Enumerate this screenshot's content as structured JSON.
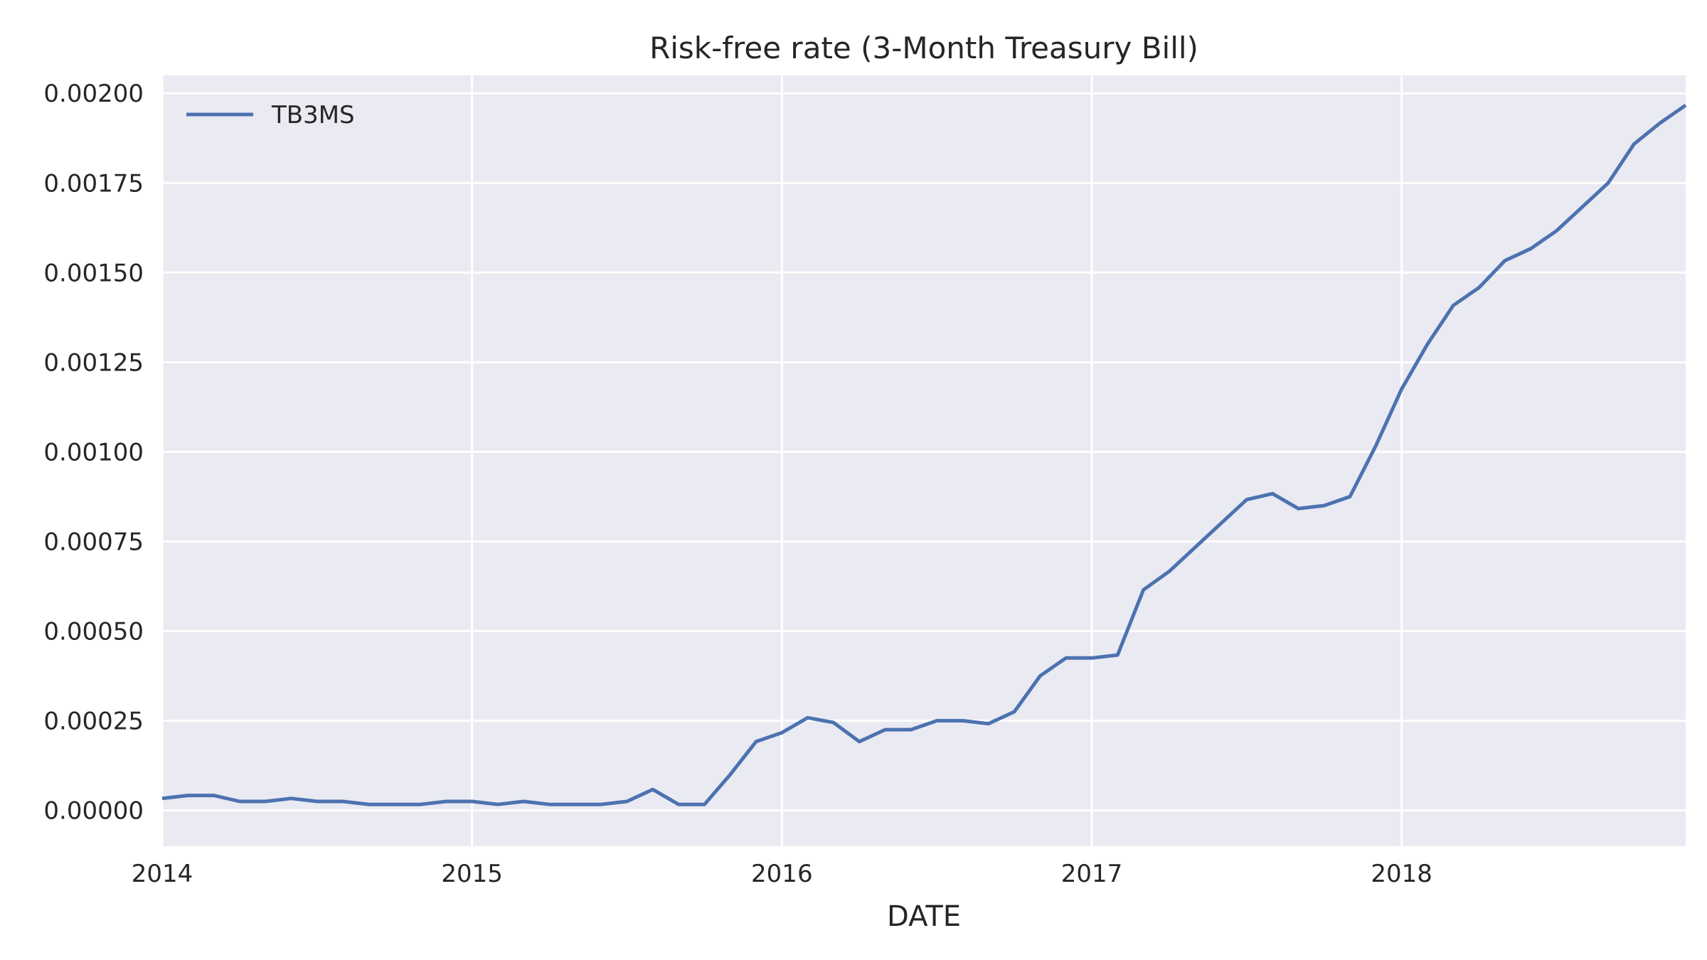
{
  "chart_data": {
    "type": "line",
    "title": "Risk-free rate (3-Month Treasury Bill)",
    "xlabel": "DATE",
    "ylabel": "",
    "x_start": "2014-01",
    "x_frequency": "monthly",
    "xlim": [
      "2014-01",
      "2018-12"
    ],
    "ylim": [
      -0.0001,
      0.00205
    ],
    "x_ticks": [
      {
        "date": "2014-01",
        "label": "2014"
      },
      {
        "date": "2015-01",
        "label": "2015"
      },
      {
        "date": "2016-01",
        "label": "2016"
      },
      {
        "date": "2017-01",
        "label": "2017"
      },
      {
        "date": "2018-01",
        "label": "2018"
      }
    ],
    "y_ticks": [
      {
        "value": 0.0,
        "label": "0.00000"
      },
      {
        "value": 0.00025,
        "label": "0.00025"
      },
      {
        "value": 0.0005,
        "label": "0.00050"
      },
      {
        "value": 0.00075,
        "label": "0.00075"
      },
      {
        "value": 0.001,
        "label": "0.00100"
      },
      {
        "value": 0.00125,
        "label": "0.00125"
      },
      {
        "value": 0.0015,
        "label": "0.00150"
      },
      {
        "value": 0.00175,
        "label": "0.00175"
      },
      {
        "value": 0.002,
        "label": "0.00200"
      }
    ],
    "grid": true,
    "legend_position": "upper-left",
    "colors": {
      "background": "#eaeaf2",
      "grid": "#ffffff",
      "line": "#4c72b0"
    },
    "series": [
      {
        "name": "TB3MS",
        "x": [
          "2014-01",
          "2014-02",
          "2014-03",
          "2014-04",
          "2014-05",
          "2014-06",
          "2014-07",
          "2014-08",
          "2014-09",
          "2014-10",
          "2014-11",
          "2014-12",
          "2015-01",
          "2015-02",
          "2015-03",
          "2015-04",
          "2015-05",
          "2015-06",
          "2015-07",
          "2015-08",
          "2015-09",
          "2015-10",
          "2015-11",
          "2015-12",
          "2016-01",
          "2016-02",
          "2016-03",
          "2016-04",
          "2016-05",
          "2016-06",
          "2016-07",
          "2016-08",
          "2016-09",
          "2016-10",
          "2016-11",
          "2016-12",
          "2017-01",
          "2017-02",
          "2017-03",
          "2017-04",
          "2017-05",
          "2017-06",
          "2017-07",
          "2017-08",
          "2017-09",
          "2017-10",
          "2017-11",
          "2017-12",
          "2018-01",
          "2018-02",
          "2018-03",
          "2018-04",
          "2018-05",
          "2018-06",
          "2018-07",
          "2018-08",
          "2018-09",
          "2018-10",
          "2018-11",
          "2018-12"
        ],
        "values": [
          3.33e-05,
          4.17e-05,
          4.17e-05,
          2.5e-05,
          2.5e-05,
          3.33e-05,
          2.5e-05,
          2.5e-05,
          1.67e-05,
          1.67e-05,
          1.67e-05,
          2.5e-05,
          2.5e-05,
          1.67e-05,
          2.5e-05,
          1.67e-05,
          1.67e-05,
          1.67e-05,
          2.5e-05,
          5.83e-05,
          1.67e-05,
          1.67e-05,
          0.0001,
          0.00019167,
          0.00021667,
          0.00025833,
          0.000245,
          0.00019167,
          0.000225,
          0.000225,
          0.00025,
          0.00025,
          0.00024167,
          0.000275,
          0.000375,
          0.000425,
          0.000425,
          0.00043333,
          0.000615,
          0.00066667,
          0.00073333,
          0.0008,
          0.00086667,
          0.00088333,
          0.00084167,
          0.00085,
          0.000875,
          0.00101667,
          0.001175,
          0.0013,
          0.00140833,
          0.00145833,
          0.00153333,
          0.00156667,
          0.00161667,
          0.00168333,
          0.00175,
          0.00185833,
          0.00191667,
          0.00196667
        ]
      }
    ]
  }
}
